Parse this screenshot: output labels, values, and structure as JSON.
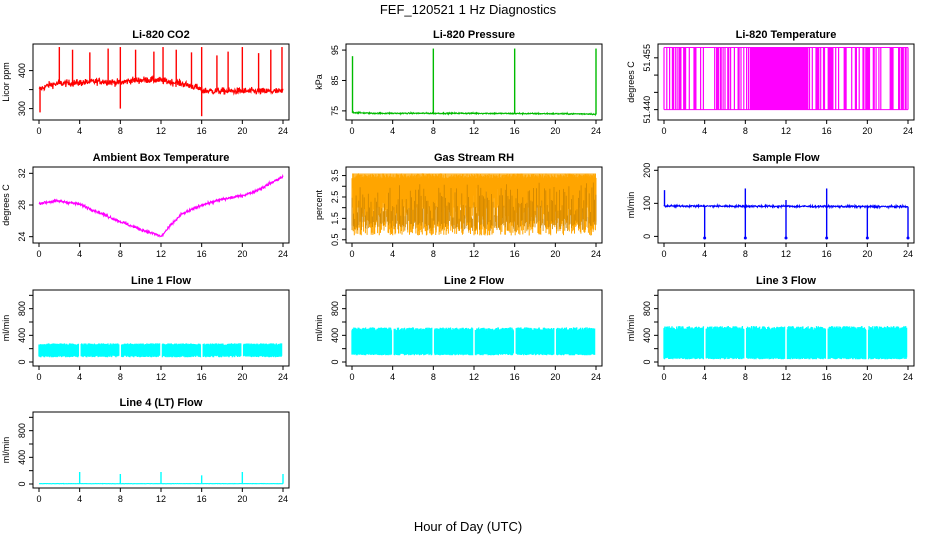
{
  "figure": {
    "title": "FEF_120521  1 Hz Diagnostics",
    "xlabel": "Hour of Day (UTC)"
  },
  "chart_data": [
    {
      "type": "line",
      "id": "co2",
      "title": "Li-820 CO2",
      "ylabel": "Licor ppm",
      "color": "#ff0000",
      "xlim": [
        0,
        24
      ],
      "ylim": [
        270,
        470
      ],
      "yticks": [
        300,
        400
      ],
      "yticks_sub": [
        350
      ],
      "xticks": [
        0,
        4,
        8,
        12,
        16,
        20,
        24
      ],
      "baseline": [
        [
          0,
          350
        ],
        [
          1,
          362
        ],
        [
          2,
          366
        ],
        [
          4,
          368
        ],
        [
          6,
          372
        ],
        [
          8,
          368
        ],
        [
          9,
          374
        ],
        [
          11,
          376
        ],
        [
          12,
          374
        ],
        [
          14,
          366
        ],
        [
          15.5,
          356
        ],
        [
          16,
          348
        ],
        [
          17,
          346
        ],
        [
          20,
          346
        ],
        [
          24,
          345
        ]
      ],
      "noise": 9,
      "spikes": [
        [
          2,
          462
        ],
        [
          3.3,
          455
        ],
        [
          5,
          448
        ],
        [
          6.8,
          458
        ],
        [
          8,
          462
        ],
        [
          9.5,
          455
        ],
        [
          11.3,
          450
        ],
        [
          12.2,
          462
        ],
        [
          13.5,
          455
        ],
        [
          15,
          448
        ],
        [
          16,
          462
        ],
        [
          17.5,
          440
        ],
        [
          18.6,
          450
        ],
        [
          20,
          462
        ],
        [
          21.6,
          446
        ],
        [
          22.8,
          455
        ],
        [
          23.9,
          462
        ]
      ],
      "dips": [
        [
          0.1,
          290
        ],
        [
          8,
          300
        ],
        [
          16,
          280
        ]
      ]
    },
    {
      "type": "line",
      "id": "pressure",
      "title": "Li-820 Pressure",
      "ylabel": "kPa",
      "color": "#00bb00",
      "xlim": [
        0,
        24
      ],
      "ylim": [
        72,
        97
      ],
      "yticks": [
        75,
        85,
        95
      ],
      "xticks": [
        0,
        4,
        8,
        12,
        16,
        20,
        24
      ],
      "baseline": [
        [
          0,
          74.5
        ],
        [
          0.5,
          74.4
        ],
        [
          2,
          74.2
        ],
        [
          12,
          74.2
        ],
        [
          23.5,
          74.0
        ],
        [
          24,
          73.8
        ]
      ],
      "noise": 0.2,
      "spikes": [
        [
          0.05,
          93
        ],
        [
          8,
          95.5
        ],
        [
          16,
          95.5
        ],
        [
          24,
          95.5
        ]
      ],
      "dips": []
    },
    {
      "type": "band",
      "id": "temp820",
      "title": "Li-820 Temperature",
      "ylabel": "degrees C",
      "color": "#ff00ff",
      "xlim": [
        0,
        24
      ],
      "ylim": [
        51.437,
        51.459
      ],
      "yticks": [
        51.44,
        51.455
      ],
      "yticks_sub": [
        51.445,
        51.45
      ],
      "xticks": [
        0,
        4,
        8,
        12,
        16,
        20,
        24
      ],
      "low": 51.44,
      "high": 51.458,
      "dense_range": [
        8.5,
        14.2
      ]
    },
    {
      "type": "line",
      "id": "ambient",
      "title": "Ambient Box Temperature",
      "ylabel": "degrees C",
      "color": "#ff00ff",
      "xlim": [
        0,
        24
      ],
      "ylim": [
        23.2,
        32.8
      ],
      "yticks": [
        24,
        28,
        32
      ],
      "xticks": [
        0,
        4,
        8,
        12,
        16,
        20,
        24
      ],
      "baseline": [
        [
          0,
          28.2
        ],
        [
          1,
          28.4
        ],
        [
          2,
          28.5
        ],
        [
          4,
          28.1
        ],
        [
          6,
          27.0
        ],
        [
          8,
          25.9
        ],
        [
          10,
          24.9
        ],
        [
          11.5,
          24.3
        ],
        [
          12,
          24.0
        ],
        [
          13,
          25.5
        ],
        [
          14,
          26.8
        ],
        [
          16,
          28.0
        ],
        [
          18,
          28.7
        ],
        [
          20,
          29.2
        ],
        [
          21,
          29.6
        ],
        [
          22,
          30.2
        ],
        [
          23,
          30.9
        ],
        [
          24,
          31.6
        ]
      ],
      "noise": 0.18,
      "spikes": [],
      "dips": []
    },
    {
      "type": "band",
      "id": "rh",
      "title": "Gas Stream RH",
      "ylabel": "percent",
      "color": "#ffa500",
      "xlim": [
        0,
        24
      ],
      "ylim": [
        0.35,
        3.9
      ],
      "yticks": [
        0.5,
        1.5,
        2.5,
        3.5
      ],
      "yticks_sub": [
        1.0,
        2.0,
        3.0
      ],
      "xticks": [
        0,
        4,
        8,
        12,
        16,
        20,
        24
      ],
      "low": 0.7,
      "high": 3.6,
      "dense_range": [
        0,
        24
      ]
    },
    {
      "type": "line",
      "id": "sample",
      "title": "Sample Flow",
      "ylabel": "ml/min",
      "color": "#0000ff",
      "xlim": [
        0,
        24
      ],
      "ylim": [
        -20,
        210
      ],
      "yticks": [
        0,
        100,
        200
      ],
      "xticks": [
        0,
        4,
        8,
        12,
        16,
        20,
        24
      ],
      "baseline": [
        [
          0,
          92
        ],
        [
          24,
          90
        ]
      ],
      "noise": 3,
      "spikes": [
        [
          0.05,
          140
        ],
        [
          8,
          145
        ],
        [
          12,
          110
        ],
        [
          16,
          145
        ]
      ],
      "dips": [
        [
          4,
          -5
        ],
        [
          8,
          -5
        ],
        [
          12,
          -5
        ],
        [
          16,
          -5
        ],
        [
          20,
          -5
        ],
        [
          24,
          -5
        ]
      ]
    },
    {
      "type": "gapband",
      "id": "line1",
      "title": "Line 1 Flow",
      "ylabel": "ml/min",
      "color": "#00ffff",
      "xlim": [
        0,
        24
      ],
      "ylim": [
        -60,
        1080
      ],
      "yticks": [
        0,
        400,
        800
      ],
      "yticks_sub": [
        200,
        600,
        1000
      ],
      "xticks": [
        0,
        4,
        8,
        12,
        16,
        20,
        24
      ],
      "low": 70,
      "high": 280,
      "gaps": [
        4,
        8,
        12,
        16,
        20,
        24
      ]
    },
    {
      "type": "gapband",
      "id": "line2",
      "title": "Line 2 Flow",
      "ylabel": "ml/min",
      "color": "#00ffff",
      "xlim": [
        0,
        24
      ],
      "ylim": [
        -60,
        1080
      ],
      "yticks": [
        0,
        400,
        800
      ],
      "yticks_sub": [
        200,
        600,
        1000
      ],
      "xticks": [
        0,
        4,
        8,
        12,
        16,
        20,
        24
      ],
      "low": 100,
      "high": 520,
      "gaps": [
        4,
        8,
        12,
        16,
        20,
        24
      ]
    },
    {
      "type": "gapband",
      "id": "line3",
      "title": "Line 3 Flow",
      "ylabel": "ml/min",
      "color": "#00ffff",
      "xlim": [
        0,
        24
      ],
      "ylim": [
        -60,
        1080
      ],
      "yticks": [
        0,
        400,
        800
      ],
      "yticks_sub": [
        200,
        600,
        1000
      ],
      "xticks": [
        0,
        4,
        8,
        12,
        16,
        20,
        24
      ],
      "low": 40,
      "high": 540,
      "gaps": [
        4,
        8,
        12,
        16,
        20,
        24
      ]
    },
    {
      "type": "line",
      "id": "line4",
      "title": "Line 4 (LT) Flow",
      "ylabel": "ml/min",
      "color": "#00ffff",
      "xlim": [
        0,
        24
      ],
      "ylim": [
        -60,
        1080
      ],
      "yticks": [
        0,
        400,
        800
      ],
      "yticks_sub": [
        200,
        600,
        1000
      ],
      "xticks": [
        0,
        4,
        8,
        12,
        16,
        20,
        24
      ],
      "baseline": [
        [
          0,
          5
        ],
        [
          24,
          5
        ]
      ],
      "noise": 2,
      "spikes": [
        [
          4,
          180
        ],
        [
          8,
          150
        ],
        [
          12,
          180
        ],
        [
          16,
          130
        ],
        [
          20,
          180
        ],
        [
          24,
          150
        ]
      ],
      "dips": []
    }
  ]
}
